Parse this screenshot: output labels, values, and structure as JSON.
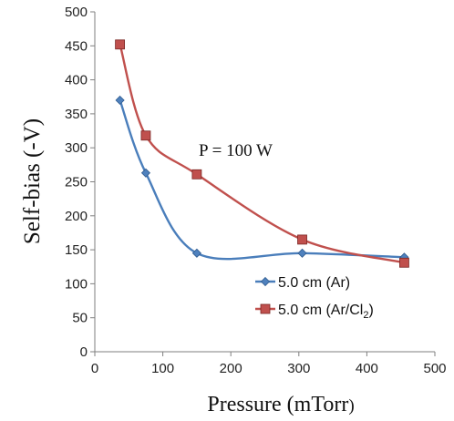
{
  "chart_data": {
    "type": "line",
    "xlabel": "Pressure (mTorr)",
    "ylabel": "Self-bias (-V)",
    "xlim": [
      0,
      500
    ],
    "ylim": [
      0,
      500
    ],
    "xticks": [
      "0",
      "100",
      "200",
      "300",
      "400",
      "500"
    ],
    "yticks": [
      "0",
      "50",
      "100",
      "150",
      "200",
      "250",
      "300",
      "350",
      "400",
      "450",
      "500"
    ],
    "grid": false,
    "legend_position": "center-right",
    "annotation": "P = 100 W",
    "series": [
      {
        "name": "5.0 cm (Ar)",
        "marker": "diamond",
        "color": "#4a7ebb",
        "marker_color": "#4f81bd",
        "x": [
          37,
          75,
          150,
          305,
          455
        ],
        "y": [
          370,
          263,
          145,
          145,
          139
        ]
      },
      {
        "name": "5.0 cm (Ar/Cl2)",
        "marker": "square",
        "color": "#c0504d",
        "marker_color": "#c0504d",
        "x": [
          37,
          75,
          150,
          305,
          455
        ],
        "y": [
          452,
          318,
          261,
          165,
          131
        ]
      }
    ]
  }
}
